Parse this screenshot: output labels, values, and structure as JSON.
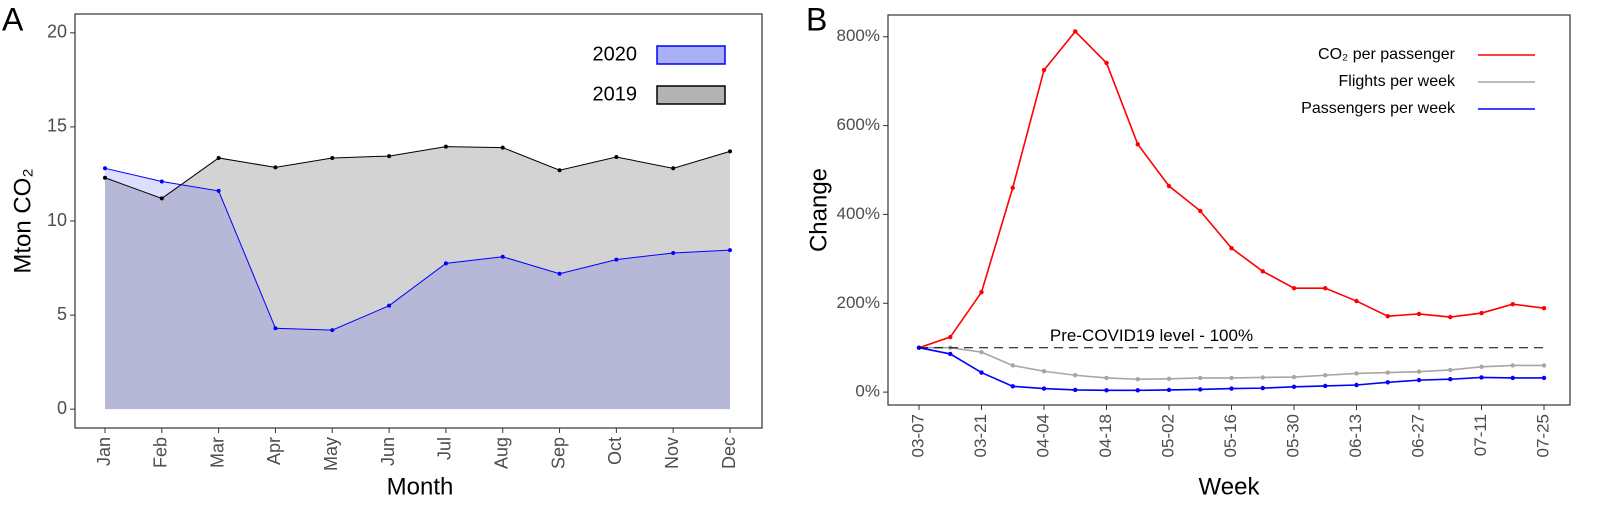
{
  "chart_data": [
    {
      "type": "area",
      "panel_label": "A",
      "x_label": "Month",
      "y_label": "Mton CO₂",
      "categories": [
        "Jan",
        "Feb",
        "Mar",
        "Apr",
        "May",
        "Jun",
        "Jul",
        "Aug",
        "Sep",
        "Oct",
        "Nov",
        "Dec"
      ],
      "series": [
        {
          "name": "2020",
          "color": "#0000ff",
          "fill": "#0000ff",
          "fill_opacity": 0.13,
          "legend_fill": "#aab0f5",
          "values": [
            12.8,
            12.1,
            11.6,
            4.3,
            4.2,
            5.5,
            7.75,
            8.1,
            7.2,
            7.95,
            8.3,
            8.45
          ]
        },
        {
          "name": "2019",
          "color": "#000000",
          "fill": "#d3d3d3",
          "fill_opacity": 1,
          "legend_fill": "#b3b3b3",
          "values": [
            12.3,
            11.2,
            13.35,
            12.85,
            13.35,
            13.45,
            13.95,
            13.9,
            12.7,
            13.4,
            12.8,
            13.7
          ]
        }
      ],
      "ylim": [
        -1,
        21
      ],
      "yticks": [
        0,
        5,
        10,
        15,
        20
      ],
      "grid": false,
      "legend": "top-right"
    },
    {
      "type": "line",
      "panel_label": "B",
      "x_label": "Week",
      "y_label": "Change",
      "categories": [
        "03-07",
        null,
        "03-21",
        null,
        "04-04",
        null,
        "04-18",
        null,
        "05-02",
        null,
        "05-16",
        null,
        "05-30",
        null,
        "06-13",
        null,
        "06-27",
        null,
        "07-11",
        null,
        "07-25"
      ],
      "series": [
        {
          "name": "CO₂ per passenger",
          "color": "#ff0000",
          "values": [
            100,
            124,
            225,
            460,
            725,
            812,
            741,
            558,
            464,
            408,
            324,
            272,
            234,
            234,
            205,
            171,
            176,
            169,
            178,
            198,
            189
          ]
        },
        {
          "name": "Flights per week",
          "color": "#a6a6a6",
          "values": [
            100,
            100,
            90,
            60,
            47,
            38,
            32,
            29,
            30,
            32,
            32,
            33,
            34,
            38,
            42,
            44,
            46,
            50,
            57,
            60,
            60
          ]
        },
        {
          "name": "Passengers per week",
          "color": "#0000ff",
          "values": [
            100,
            86,
            44,
            13,
            8,
            5,
            4,
            4,
            5,
            6,
            8,
            9,
            12,
            14,
            16,
            22,
            27,
            29,
            33,
            32,
            32
          ]
        }
      ],
      "ylim": [
        -29,
        849
      ],
      "yticks": [
        {
          "value": 0,
          "label": "0%"
        },
        {
          "value": 200,
          "label": "200%"
        },
        {
          "value": 400,
          "label": "400%"
        },
        {
          "value": 600,
          "label": "600%"
        },
        {
          "value": 800,
          "label": "800%"
        }
      ],
      "reference_line": {
        "value": 100,
        "label": "Pre-COVID19 level - 100%"
      },
      "grid": false,
      "legend": "top-right"
    }
  ]
}
